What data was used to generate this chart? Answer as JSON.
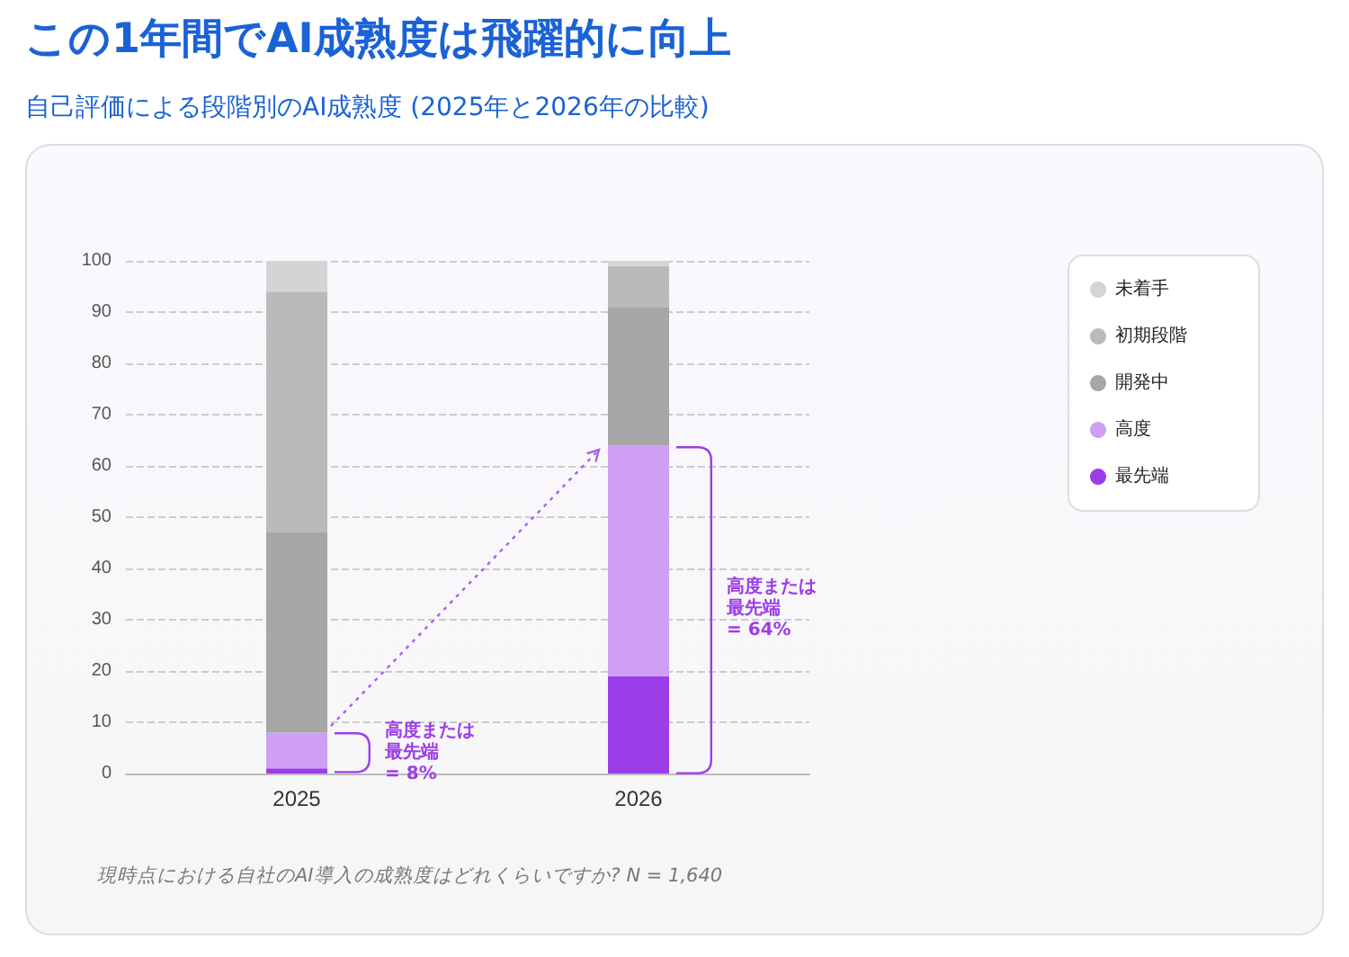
{
  "chart_data": {
    "type": "bar",
    "title": "この1年間でAI成熟度は飛躍的に向上",
    "subtitle": "自己評価による段階別のAI成熟度 (2025年と2026年の比較)",
    "categories": [
      "2025",
      "2026"
    ],
    "stacked": true,
    "series": [
      {
        "name": "最先端",
        "color": "#9b3ee8",
        "values": [
          1,
          19
        ]
      },
      {
        "name": "高度",
        "color": "#cf9ff5",
        "values": [
          7,
          45
        ]
      },
      {
        "name": "開発中",
        "color": "#a6a6a6",
        "values": [
          39,
          27
        ]
      },
      {
        "name": "初期段階",
        "color": "#bababa",
        "values": [
          47,
          8
        ]
      },
      {
        "name": "未着手",
        "color": "#d4d4d4",
        "values": [
          6,
          1
        ]
      }
    ],
    "ylim": [
      0,
      100
    ],
    "yticks": [
      0,
      10,
      20,
      30,
      40,
      50,
      60,
      70,
      80,
      90,
      100
    ],
    "grid": "y",
    "legend": "right",
    "annotations": [
      "高度または最先端\n= 8%",
      "高度または最先端\n= 64%",
      "現時点における自社のAI導入の成熟度はどれくらいですか? N = 1,640"
    ]
  }
}
